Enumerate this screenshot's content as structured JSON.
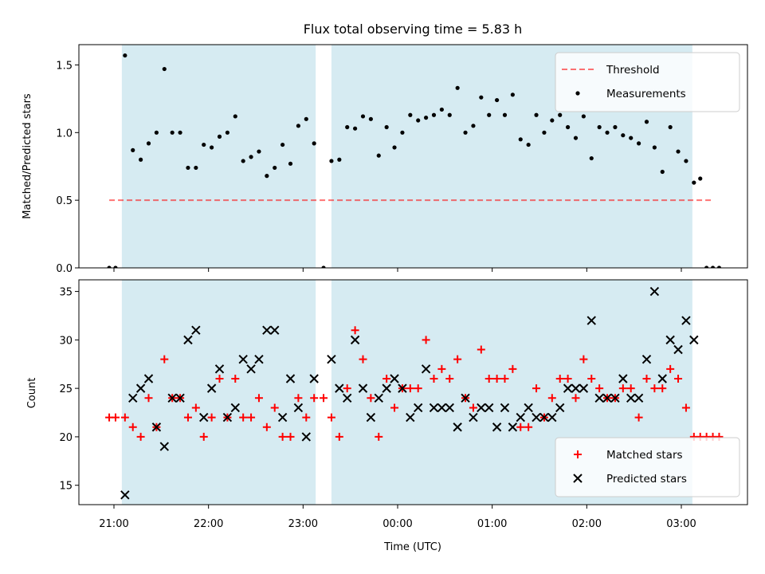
{
  "chart_data": [
    {
      "type": "scatter",
      "title": "Flux total observing time = 5.83 h",
      "xlabel": "",
      "ylabel": "Matched/Predicted stars",
      "ylim": [
        0,
        1.65
      ],
      "yticks": [
        "0.0",
        "0.5",
        "1.0",
        "1.5"
      ],
      "shaded_spans": [
        [
          "21:05",
          "23:08"
        ],
        [
          "23:18",
          "03:07"
        ]
      ],
      "span_color": "#add8e6",
      "legend_position": "upper right",
      "threshold": {
        "name": "Threshold",
        "value": 0.5,
        "x_start": "20:57",
        "x_end": "03:20",
        "color": "#ff0000"
      },
      "series": [
        {
          "name": "Measurements",
          "color": "#000000",
          "points": [
            [
              "20:57",
              0.0
            ],
            [
              "21:01",
              0.0
            ],
            [
              "21:07",
              1.57
            ],
            [
              "21:12",
              0.87
            ],
            [
              "21:17",
              0.8
            ],
            [
              "21:22",
              0.92
            ],
            [
              "21:27",
              1.0
            ],
            [
              "21:32",
              1.47
            ],
            [
              "21:37",
              1.0
            ],
            [
              "21:42",
              1.0
            ],
            [
              "21:47",
              0.74
            ],
            [
              "21:52",
              0.74
            ],
            [
              "21:57",
              0.91
            ],
            [
              "22:02",
              0.89
            ],
            [
              "22:07",
              0.97
            ],
            [
              "22:12",
              1.0
            ],
            [
              "22:17",
              1.12
            ],
            [
              "22:22",
              0.79
            ],
            [
              "22:27",
              0.82
            ],
            [
              "22:32",
              0.86
            ],
            [
              "22:37",
              0.68
            ],
            [
              "22:42",
              0.74
            ],
            [
              "22:47",
              0.91
            ],
            [
              "22:52",
              0.77
            ],
            [
              "22:57",
              1.05
            ],
            [
              "23:02",
              1.1
            ],
            [
              "23:07",
              0.92
            ],
            [
              "23:13",
              0.0
            ],
            [
              "23:18",
              0.79
            ],
            [
              "23:23",
              0.8
            ],
            [
              "23:28",
              1.04
            ],
            [
              "23:33",
              1.03
            ],
            [
              "23:38",
              1.12
            ],
            [
              "23:43",
              1.1
            ],
            [
              "23:48",
              0.83
            ],
            [
              "23:53",
              1.04
            ],
            [
              "23:58",
              0.89
            ],
            [
              "00:03",
              1.0
            ],
            [
              "00:08",
              1.13
            ],
            [
              "00:13",
              1.09
            ],
            [
              "00:18",
              1.11
            ],
            [
              "00:23",
              1.13
            ],
            [
              "00:28",
              1.17
            ],
            [
              "00:33",
              1.13
            ],
            [
              "00:38",
              1.33
            ],
            [
              "00:43",
              1.0
            ],
            [
              "00:48",
              1.05
            ],
            [
              "00:53",
              1.26
            ],
            [
              "00:58",
              1.13
            ],
            [
              "01:03",
              1.24
            ],
            [
              "01:08",
              1.13
            ],
            [
              "01:13",
              1.28
            ],
            [
              "01:18",
              0.95
            ],
            [
              "01:23",
              0.91
            ],
            [
              "01:28",
              1.13
            ],
            [
              "01:33",
              1.0
            ],
            [
              "01:38",
              1.09
            ],
            [
              "01:43",
              1.13
            ],
            [
              "01:48",
              1.04
            ],
            [
              "01:53",
              0.96
            ],
            [
              "01:58",
              1.12
            ],
            [
              "02:03",
              0.81
            ],
            [
              "02:08",
              1.04
            ],
            [
              "02:13",
              1.0
            ],
            [
              "02:18",
              1.04
            ],
            [
              "02:23",
              0.98
            ],
            [
              "02:28",
              0.96
            ],
            [
              "02:33",
              0.92
            ],
            [
              "02:38",
              1.08
            ],
            [
              "02:43",
              0.89
            ],
            [
              "02:48",
              0.71
            ],
            [
              "02:53",
              1.04
            ],
            [
              "02:58",
              0.86
            ],
            [
              "03:03",
              0.79
            ],
            [
              "03:08",
              0.63
            ],
            [
              "03:12",
              0.66
            ],
            [
              "03:16",
              0.0
            ],
            [
              "03:20",
              0.0
            ],
            [
              "03:24",
              0.0
            ]
          ]
        }
      ]
    },
    {
      "type": "scatter",
      "title": "",
      "xlabel": "Time (UTC)",
      "ylabel": "Count",
      "ylim": [
        13,
        36.2
      ],
      "yticks": [
        "15",
        "20",
        "25",
        "30",
        "35"
      ],
      "xticks": [
        "21:00",
        "22:00",
        "23:00",
        "00:00",
        "01:00",
        "02:00",
        "03:00"
      ],
      "shaded_spans": [
        [
          "21:05",
          "23:08"
        ],
        [
          "23:18",
          "03:07"
        ]
      ],
      "span_color": "#add8e6",
      "legend_position": "lower right",
      "series": [
        {
          "name": "Matched stars",
          "color": "#ff0000",
          "marker": "plus",
          "points": [
            [
              "20:57",
              22
            ],
            [
              "21:01",
              22
            ],
            [
              "21:07",
              22
            ],
            [
              "21:12",
              21
            ],
            [
              "21:17",
              20
            ],
            [
              "21:22",
              24
            ],
            [
              "21:27",
              21
            ],
            [
              "21:32",
              28
            ],
            [
              "21:37",
              24
            ],
            [
              "21:42",
              24
            ],
            [
              "21:47",
              22
            ],
            [
              "21:52",
              23
            ],
            [
              "21:57",
              20
            ],
            [
              "22:02",
              22
            ],
            [
              "22:07",
              26
            ],
            [
              "22:12",
              22
            ],
            [
              "22:17",
              26
            ],
            [
              "22:22",
              22
            ],
            [
              "22:27",
              22
            ],
            [
              "22:32",
              24
            ],
            [
              "22:37",
              21
            ],
            [
              "22:42",
              23
            ],
            [
              "22:47",
              20
            ],
            [
              "22:52",
              20
            ],
            [
              "22:57",
              24
            ],
            [
              "23:02",
              22
            ],
            [
              "23:07",
              24
            ],
            [
              "23:13",
              24
            ],
            [
              "23:18",
              22
            ],
            [
              "23:23",
              20
            ],
            [
              "23:28",
              25
            ],
            [
              "23:33",
              31
            ],
            [
              "23:38",
              28
            ],
            [
              "23:43",
              24
            ],
            [
              "23:48",
              20
            ],
            [
              "23:53",
              26
            ],
            [
              "23:58",
              23
            ],
            [
              "00:03",
              25
            ],
            [
              "00:08",
              25
            ],
            [
              "00:13",
              25
            ],
            [
              "00:18",
              30
            ],
            [
              "00:23",
              26
            ],
            [
              "00:28",
              27
            ],
            [
              "00:33",
              26
            ],
            [
              "00:38",
              28
            ],
            [
              "00:43",
              24
            ],
            [
              "00:48",
              23
            ],
            [
              "00:53",
              29
            ],
            [
              "00:58",
              26
            ],
            [
              "01:03",
              26
            ],
            [
              "01:08",
              26
            ],
            [
              "01:13",
              27
            ],
            [
              "01:18",
              21
            ],
            [
              "01:23",
              21
            ],
            [
              "01:28",
              25
            ],
            [
              "01:33",
              22
            ],
            [
              "01:38",
              24
            ],
            [
              "01:43",
              26
            ],
            [
              "01:48",
              26
            ],
            [
              "01:53",
              24
            ],
            [
              "01:58",
              28
            ],
            [
              "02:03",
              26
            ],
            [
              "02:08",
              25
            ],
            [
              "02:13",
              24
            ],
            [
              "02:18",
              24
            ],
            [
              "02:23",
              25
            ],
            [
              "02:28",
              25
            ],
            [
              "02:33",
              22
            ],
            [
              "02:38",
              26
            ],
            [
              "02:43",
              25
            ],
            [
              "02:48",
              25
            ],
            [
              "02:53",
              27
            ],
            [
              "02:58",
              26
            ],
            [
              "03:03",
              23
            ],
            [
              "03:08",
              20
            ],
            [
              "03:12",
              20
            ],
            [
              "03:16",
              20
            ],
            [
              "03:20",
              20
            ],
            [
              "03:24",
              20
            ]
          ]
        },
        {
          "name": "Predicted stars",
          "color": "#000000",
          "marker": "x",
          "points": [
            [
              "21:07",
              14
            ],
            [
              "21:12",
              24
            ],
            [
              "21:17",
              25
            ],
            [
              "21:22",
              26
            ],
            [
              "21:27",
              21
            ],
            [
              "21:32",
              19
            ],
            [
              "21:37",
              24
            ],
            [
              "21:42",
              24
            ],
            [
              "21:47",
              30
            ],
            [
              "21:52",
              31
            ],
            [
              "21:57",
              22
            ],
            [
              "22:02",
              25
            ],
            [
              "22:07",
              27
            ],
            [
              "22:12",
              22
            ],
            [
              "22:17",
              23
            ],
            [
              "22:22",
              28
            ],
            [
              "22:27",
              27
            ],
            [
              "22:32",
              28
            ],
            [
              "22:37",
              31
            ],
            [
              "22:42",
              31
            ],
            [
              "22:47",
              22
            ],
            [
              "22:52",
              26
            ],
            [
              "22:57",
              23
            ],
            [
              "23:02",
              20
            ],
            [
              "23:07",
              26
            ],
            [
              "23:18",
              28
            ],
            [
              "23:23",
              25
            ],
            [
              "23:28",
              24
            ],
            [
              "23:33",
              30
            ],
            [
              "23:38",
              25
            ],
            [
              "23:43",
              22
            ],
            [
              "23:48",
              24
            ],
            [
              "23:53",
              25
            ],
            [
              "23:58",
              26
            ],
            [
              "00:03",
              25
            ],
            [
              "00:08",
              22
            ],
            [
              "00:13",
              23
            ],
            [
              "00:18",
              27
            ],
            [
              "00:23",
              23
            ],
            [
              "00:28",
              23
            ],
            [
              "00:33",
              23
            ],
            [
              "00:38",
              21
            ],
            [
              "00:43",
              24
            ],
            [
              "00:48",
              22
            ],
            [
              "00:53",
              23
            ],
            [
              "00:58",
              23
            ],
            [
              "01:03",
              21
            ],
            [
              "01:08",
              23
            ],
            [
              "01:13",
              21
            ],
            [
              "01:18",
              22
            ],
            [
              "01:23",
              23
            ],
            [
              "01:28",
              22
            ],
            [
              "01:33",
              22
            ],
            [
              "01:38",
              22
            ],
            [
              "01:43",
              23
            ],
            [
              "01:48",
              25
            ],
            [
              "01:53",
              25
            ],
            [
              "01:58",
              25
            ],
            [
              "02:03",
              32
            ],
            [
              "02:08",
              24
            ],
            [
              "02:13",
              24
            ],
            [
              "02:18",
              24
            ],
            [
              "02:23",
              26
            ],
            [
              "02:28",
              24
            ],
            [
              "02:33",
              24
            ],
            [
              "02:38",
              28
            ],
            [
              "02:43",
              35
            ],
            [
              "02:48",
              26
            ],
            [
              "02:53",
              30
            ],
            [
              "02:58",
              29
            ],
            [
              "03:03",
              32
            ],
            [
              "03:08",
              30
            ]
          ]
        }
      ]
    }
  ]
}
